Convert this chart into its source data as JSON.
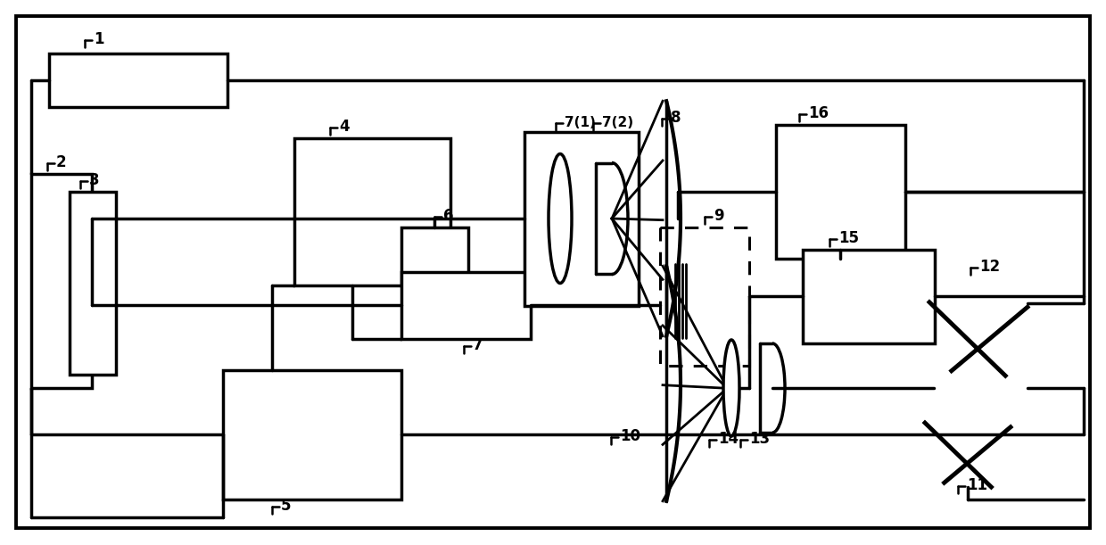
{
  "bg": "#ffffff",
  "lc": "#000000",
  "lw": 2.5,
  "fig_w": 12.4,
  "fig_h": 6.11,
  "dpi": 100
}
